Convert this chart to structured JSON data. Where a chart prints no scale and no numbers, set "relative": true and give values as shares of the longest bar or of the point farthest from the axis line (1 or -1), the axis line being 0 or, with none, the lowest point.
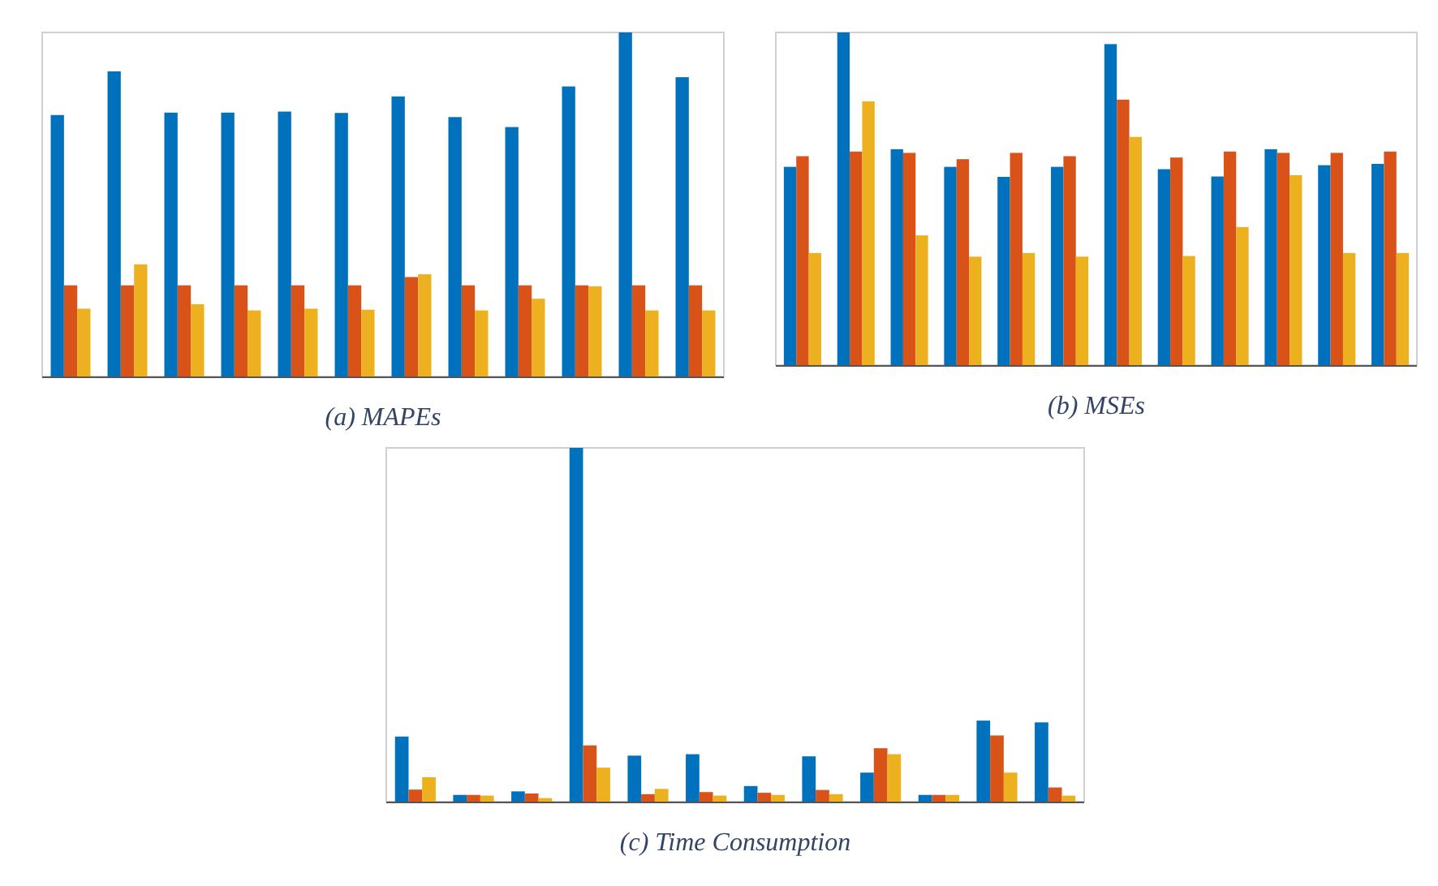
{
  "chart_data": [
    {
      "type": "bar",
      "title": "(a) MAPEs",
      "relative": true,
      "categories": [
        null,
        null,
        null,
        null,
        null,
        null,
        null,
        null,
        null,
        null,
        null,
        null
      ],
      "series": [
        {
          "color": "#0072bd",
          "values": [
            0.76,
            0.887,
            0.767,
            0.767,
            0.77,
            0.766,
            0.814,
            0.754,
            0.725,
            0.843,
            1,
            0.87
          ]
        },
        {
          "color": "#d95319",
          "values": [
            0.265,
            0.265,
            0.265,
            0.265,
            0.265,
            0.265,
            0.289,
            0.265,
            0.265,
            0.265,
            0.265,
            0.265
          ]
        },
        {
          "color": "#edb120",
          "values": [
            0.197,
            0.326,
            0.21,
            0.192,
            0.197,
            0.194,
            0.297,
            0.192,
            0.226,
            0.262,
            0.192,
            0.192
          ]
        }
      ]
    },
    {
      "type": "bar",
      "title": "(b) MSEs",
      "relative": true,
      "categories": [
        null,
        null,
        null,
        null,
        null,
        null,
        null,
        null,
        null,
        null,
        null,
        null
      ],
      "series": [
        {
          "color": "#0072bd",
          "values": [
            0.596,
            1,
            0.649,
            0.596,
            0.566,
            0.596,
            0.965,
            0.589,
            0.567,
            0.649,
            0.601,
            0.605
          ]
        },
        {
          "color": "#d95319",
          "values": [
            0.628,
            0.642,
            0.638,
            0.619,
            0.638,
            0.628,
            0.798,
            0.624,
            0.642,
            0.638,
            0.638,
            0.642
          ]
        },
        {
          "color": "#edb120",
          "values": [
            0.337,
            0.793,
            0.39,
            0.326,
            0.337,
            0.326,
            0.686,
            0.328,
            0.415,
            0.571,
            0.337,
            0.337
          ]
        }
      ]
    },
    {
      "type": "bar",
      "title": "(c) Time Consumption",
      "relative": true,
      "categories": [
        null,
        null,
        null,
        null,
        null,
        null,
        null,
        null,
        null,
        null,
        null,
        null
      ],
      "series": [
        {
          "color": "#0072bd",
          "values": [
            0.184,
            0.019,
            0.029,
            1,
            0.13,
            0.134,
            0.044,
            0.128,
            0.082,
            0.019,
            0.229,
            0.224
          ]
        },
        {
          "color": "#d95319",
          "values": [
            0.034,
            0.019,
            0.023,
            0.159,
            0.021,
            0.027,
            0.025,
            0.033,
            0.151,
            0.019,
            0.187,
            0.04
          ]
        },
        {
          "color": "#edb120",
          "values": [
            0.069,
            0.017,
            0.01,
            0.096,
            0.036,
            0.017,
            0.019,
            0.021,
            0.134,
            0.019,
            0.082,
            0.017
          ]
        }
      ]
    }
  ]
}
